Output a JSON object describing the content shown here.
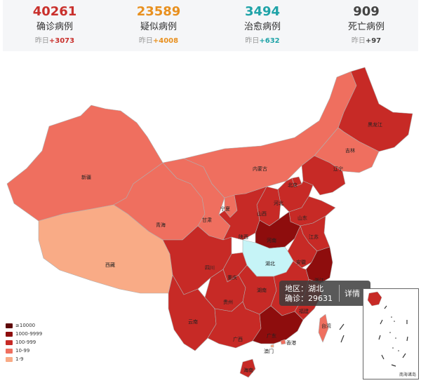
{
  "stats": [
    {
      "value": "40261",
      "label": "确诊病例",
      "yday_prefix": "昨日",
      "yday_delta": "+3073",
      "color": "#c9302c"
    },
    {
      "value": "23589",
      "label": "疑似病例",
      "yday_prefix": "昨日",
      "yday_delta": "+4008",
      "color": "#e8901f"
    },
    {
      "value": "3494",
      "label": "治愈病例",
      "yday_prefix": "昨日",
      "yday_delta": "+632",
      "color": "#1fa3a8"
    },
    {
      "value": "909",
      "label": "死亡病例",
      "yday_prefix": "昨日",
      "yday_delta": "+97",
      "color": "#444444"
    }
  ],
  "map": {
    "provinces": [
      {
        "id": "xinjiang",
        "name": "新疆",
        "level": "10-99"
      },
      {
        "id": "xizang",
        "name": "西藏",
        "level": "1-9"
      },
      {
        "id": "qinghai",
        "name": "青海",
        "level": "10-99"
      },
      {
        "id": "gansu",
        "name": "甘肃",
        "level": "10-99"
      },
      {
        "id": "neimenggu",
        "name": "内蒙古",
        "level": "10-99"
      },
      {
        "id": "heilongjiang",
        "name": "黑龙江",
        "level": "100-999"
      },
      {
        "id": "jilin",
        "name": "吉林",
        "level": "10-99"
      },
      {
        "id": "liaoning",
        "name": "辽宁",
        "level": "100-999"
      },
      {
        "id": "ningxia",
        "name": "宁夏",
        "level": "10-99"
      },
      {
        "id": "shanxi",
        "name": "山西",
        "level": "100-999"
      },
      {
        "id": "hebei",
        "name": "河北",
        "level": "100-999"
      },
      {
        "id": "beijing",
        "name": "北京",
        "level": "100-999"
      },
      {
        "id": "shandong",
        "name": "山东",
        "level": "100-999"
      },
      {
        "id": "shaanxi",
        "name": "陕西",
        "level": "100-999"
      },
      {
        "id": "henan",
        "name": "河南",
        "level": "1000-9999"
      },
      {
        "id": "jiangsu",
        "name": "江苏",
        "level": "100-999"
      },
      {
        "id": "anhui",
        "name": "安徽",
        "level": "100-999"
      },
      {
        "id": "sichuan",
        "name": "四川",
        "level": "100-999"
      },
      {
        "id": "chongqing",
        "name": "重庆",
        "level": "100-999"
      },
      {
        "id": "hubei",
        "name": "湖北",
        "level": "≥10000"
      },
      {
        "id": "zhejiang",
        "name": "浙江",
        "level": "1000-9999"
      },
      {
        "id": "guizhou",
        "name": "贵州",
        "level": "100-999"
      },
      {
        "id": "hunan",
        "name": "湖南",
        "level": "100-999"
      },
      {
        "id": "jiangxi",
        "name": "江西",
        "level": "100-999"
      },
      {
        "id": "fujian",
        "name": "福建",
        "level": "100-999"
      },
      {
        "id": "yunnan",
        "name": "云南",
        "level": "100-999"
      },
      {
        "id": "guangxi",
        "name": "广西",
        "level": "100-999"
      },
      {
        "id": "guangdong",
        "name": "广东",
        "level": "1000-9999"
      },
      {
        "id": "hainan",
        "name": "海南",
        "level": "100-999"
      },
      {
        "id": "taiwan",
        "name": "台湾",
        "level": "10-99"
      },
      {
        "id": "xianggang",
        "name": "香港",
        "level": "10-99"
      },
      {
        "id": "aomen",
        "name": "澳门",
        "level": "1-9"
      }
    ]
  },
  "legend": [
    {
      "label": "≥10000",
      "color": "#5e0707"
    },
    {
      "label": "1000-9999",
      "color": "#8e0d0d"
    },
    {
      "label": "100-999",
      "color": "#c72a26"
    },
    {
      "label": "10-99",
      "color": "#ef6f5f"
    },
    {
      "label": "1-9",
      "color": "#f9ab86"
    }
  ],
  "tooltip": {
    "region_label": "地区：湖北",
    "confirmed_label": "确诊：29631",
    "detail_label": "详情 ›"
  },
  "inset": {
    "label": "南海诸岛"
  },
  "colors": {
    "hover_fill": "#c6f4f7",
    "border": "#b0b0b0"
  }
}
